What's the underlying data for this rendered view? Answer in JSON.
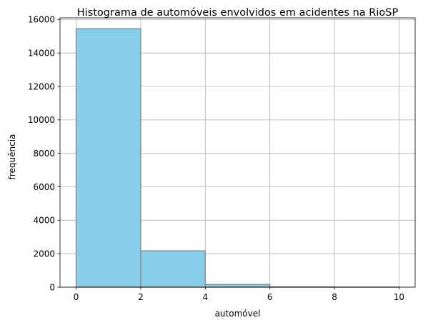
{
  "chart_data": {
    "type": "bar",
    "title": "Histograma de automóveis envolvidos em acidentes na RioSP",
    "xlabel": "automóvel",
    "ylabel": "frequência",
    "bins": [
      {
        "start": 0,
        "end": 2,
        "value": 15450
      },
      {
        "start": 2,
        "end": 4,
        "value": 2170
      },
      {
        "start": 4,
        "end": 6,
        "value": 160
      },
      {
        "start": 6,
        "end": 8,
        "value": 20
      },
      {
        "start": 8,
        "end": 10,
        "value": 5
      }
    ],
    "xlim": [
      -0.5,
      10.5
    ],
    "ylim": [
      0,
      16100
    ],
    "xticks": [
      0,
      2,
      4,
      6,
      8,
      10
    ],
    "xtick_labels": [
      "0",
      "2",
      "4",
      "6",
      "8",
      "10"
    ],
    "yticks": [
      0,
      2000,
      4000,
      6000,
      8000,
      10000,
      12000,
      14000,
      16000
    ],
    "ytick_labels": [
      "0",
      "2000",
      "4000",
      "6000",
      "8000",
      "10000",
      "12000",
      "14000",
      "16000"
    ],
    "grid": true,
    "colors": {
      "bar_fill": "#87ceeb",
      "bar_edge": "#8e8e8e",
      "grid": "#b0b0b0",
      "background": "#ffffff"
    }
  }
}
